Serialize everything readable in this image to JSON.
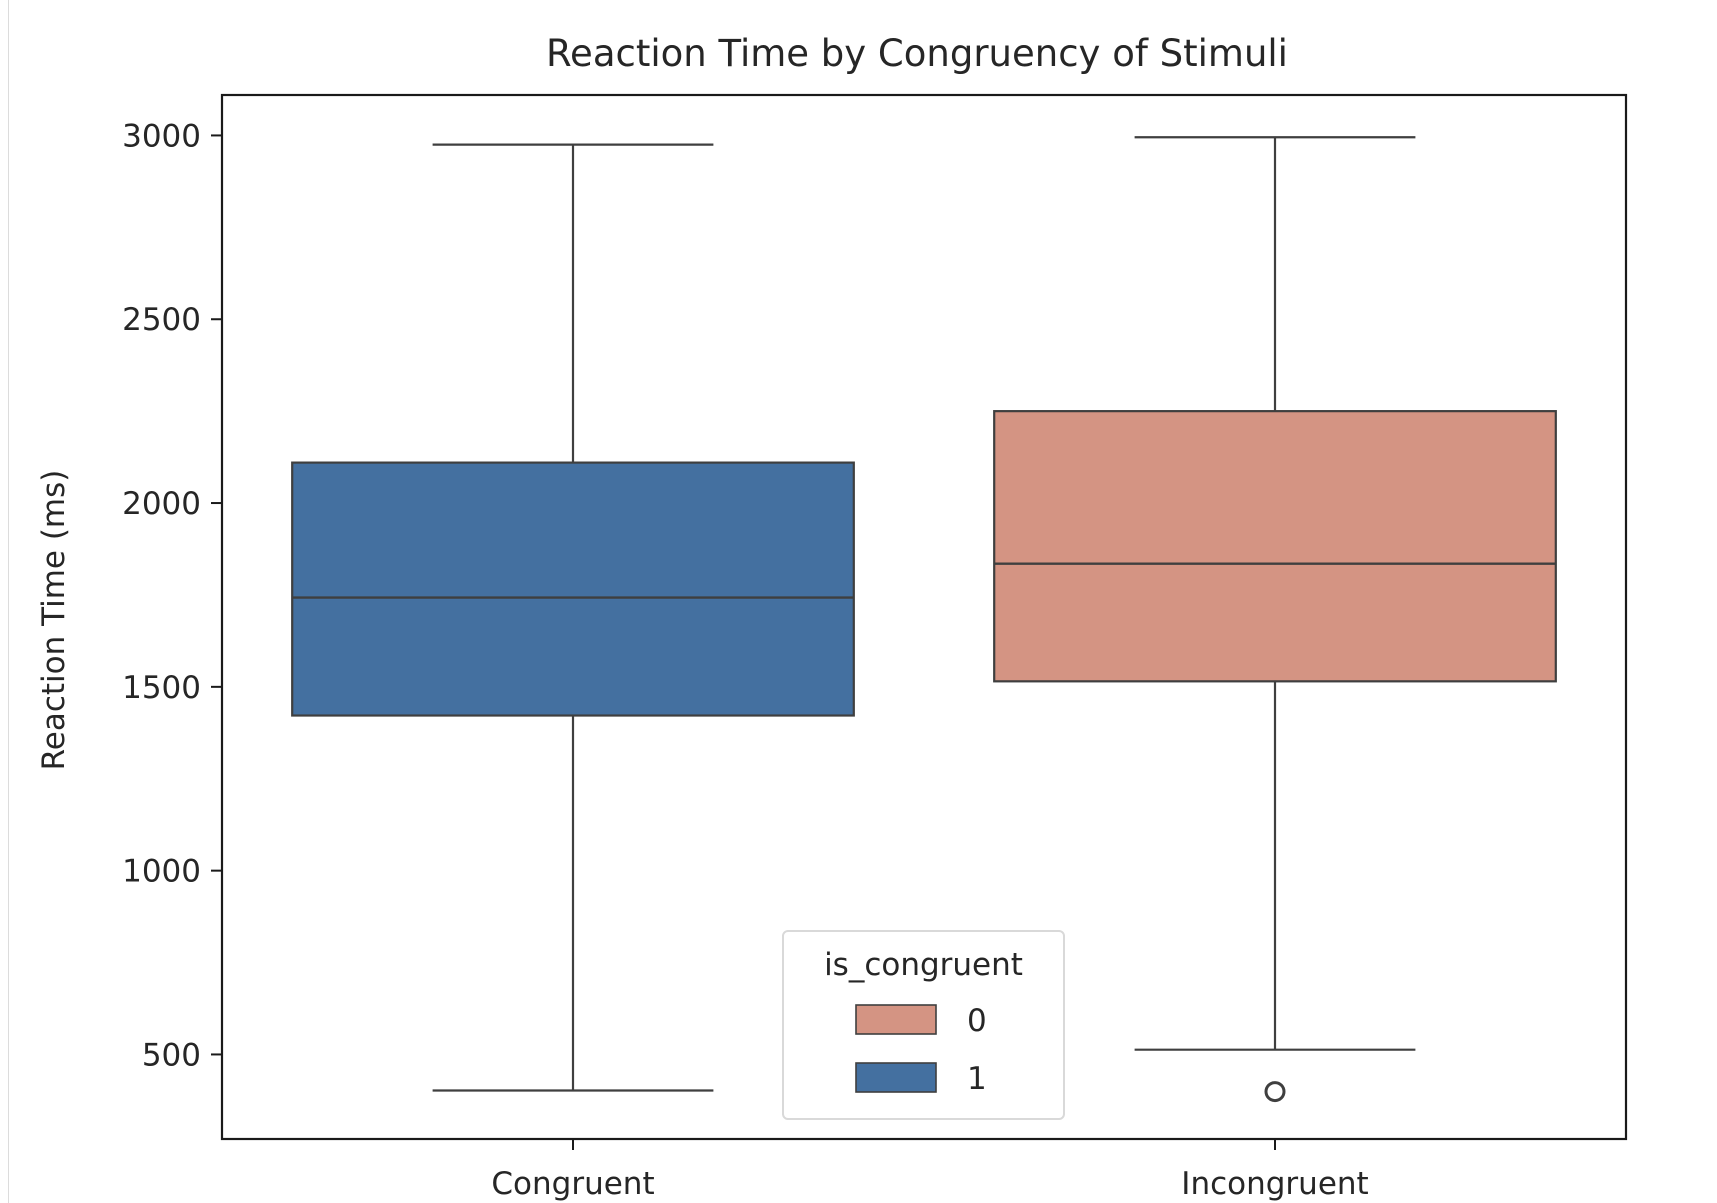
{
  "chart_data": {
    "type": "box",
    "title": "Reaction Time by Congruency of Stimuli",
    "xlabel": "",
    "ylabel": "Reaction Time (ms)",
    "ylim": [
      270,
      3110
    ],
    "yticks": [
      500,
      1000,
      1500,
      2000,
      2500,
      3000
    ],
    "categories": [
      "Congruent",
      "Incongruent"
    ],
    "grid": false,
    "boxes": [
      {
        "category": "Congruent",
        "hue": "1",
        "color": "#4470a0",
        "whisker_low": 402,
        "q1": 1422,
        "median": 1743,
        "q3": 2110,
        "whisker_high": 2975,
        "outliers": []
      },
      {
        "category": "Incongruent",
        "hue": "0",
        "color": "#d49483",
        "whisker_low": 513,
        "q1": 1515,
        "median": 1835,
        "q3": 2250,
        "whisker_high": 2995,
        "outliers": [
          399
        ]
      }
    ],
    "legend": {
      "title": "is_congruent",
      "placement": "lower-center",
      "entries": [
        {
          "label": "0",
          "color": "#d49483"
        },
        {
          "label": "1",
          "color": "#4470a0"
        }
      ]
    }
  }
}
